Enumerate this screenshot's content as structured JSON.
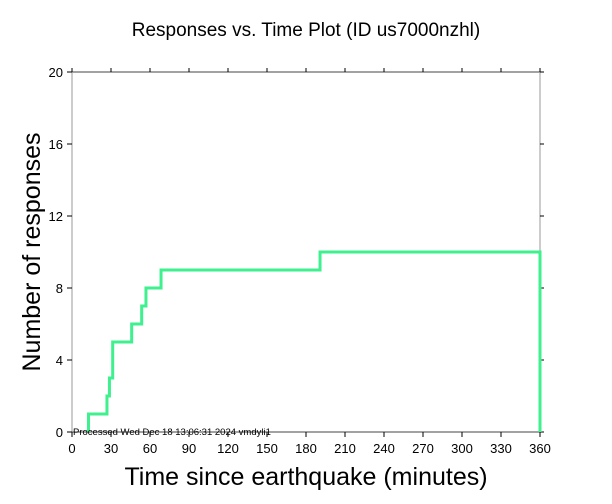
{
  "chart_data": {
    "type": "line",
    "title": "Responses vs. Time Plot (ID us7000nzhl)",
    "xlabel": "Time since earthquake (minutes)",
    "ylabel": "Number of responses",
    "xlim": [
      0,
      360
    ],
    "ylim": [
      0,
      20
    ],
    "xticks": [
      0,
      30,
      60,
      90,
      120,
      150,
      180,
      210,
      240,
      270,
      300,
      330,
      360
    ],
    "yticks": [
      0,
      4,
      8,
      12,
      16,
      20
    ],
    "grid": false,
    "line_color": "#3ef08e",
    "series": [
      {
        "name": "responses",
        "step": true,
        "x": [
          12.7,
          12.7,
          26.9,
          26.9,
          28.8,
          28.8,
          31.3,
          31.3,
          45.9,
          45.9,
          53.6,
          53.6,
          56.9,
          56.9,
          68.5,
          68.5,
          190.8,
          190.8,
          360,
          360
        ],
        "y": [
          0,
          1,
          1,
          2,
          2,
          3,
          3,
          5,
          5,
          6,
          6,
          7,
          7,
          8,
          8,
          9,
          9,
          10,
          10,
          0
        ]
      }
    ],
    "annotation": "Processed Wed Dec 18 13:06:31 2024 vmdyli1"
  }
}
